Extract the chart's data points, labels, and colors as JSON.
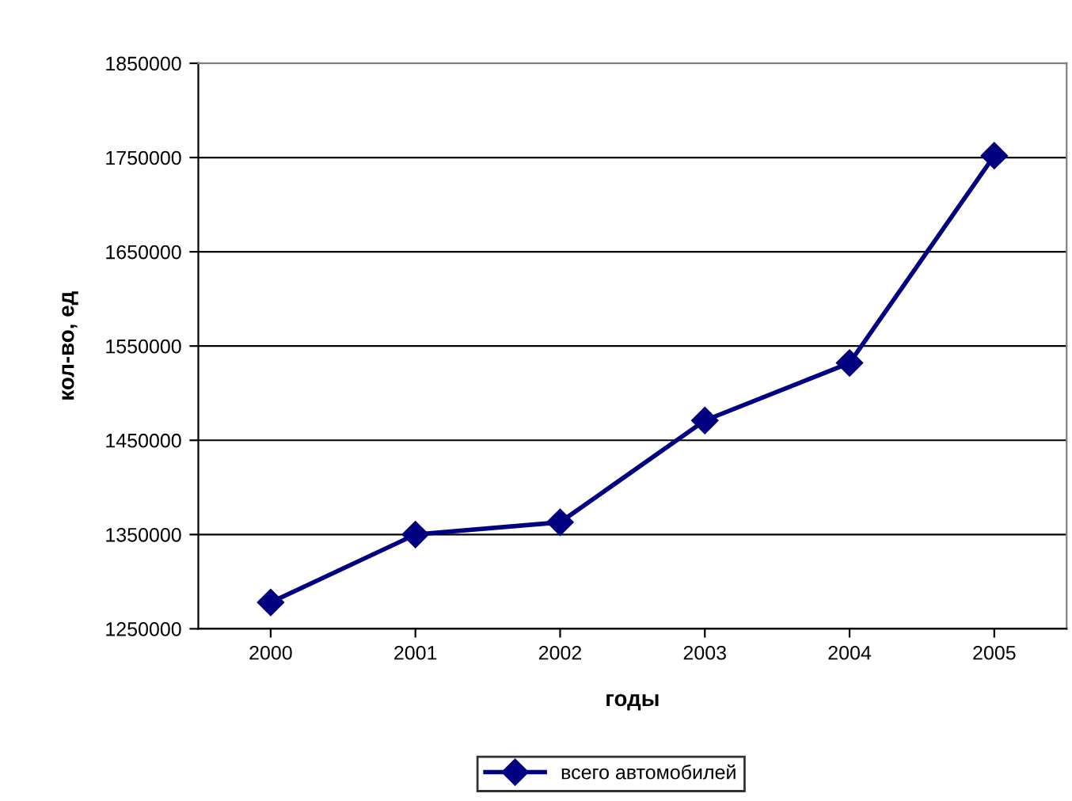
{
  "chart_data": {
    "type": "line",
    "xlabel": "годы",
    "ylabel": "кол-во, ед",
    "categories": [
      "2000",
      "2001",
      "2002",
      "2003",
      "2004",
      "2005"
    ],
    "series": [
      {
        "name": "всего автомобилей",
        "color": "#000080",
        "values": [
          1278000,
          1350000,
          1363000,
          1471000,
          1532000,
          1752000
        ]
      }
    ],
    "ylim": [
      1250000,
      1850000
    ],
    "yticks": [
      1250000,
      1350000,
      1450000,
      1550000,
      1650000,
      1750000,
      1850000
    ],
    "grid": "y",
    "legend": "bottom",
    "marker": "diamond",
    "line_style": "solid"
  }
}
